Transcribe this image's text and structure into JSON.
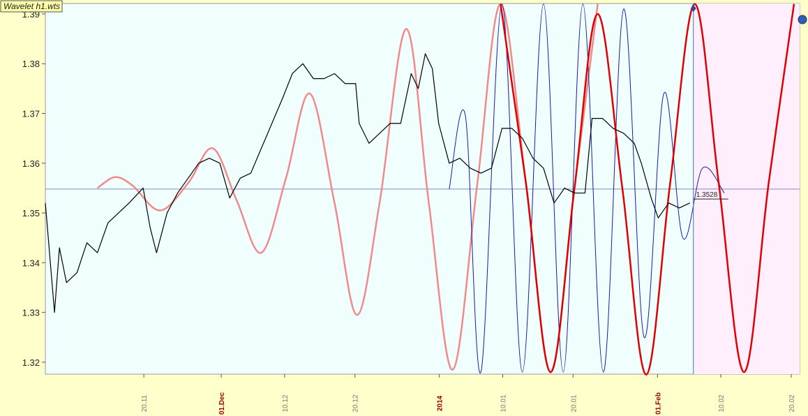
{
  "chart_data": {
    "type": "line",
    "title": "Wavelet h1.wts",
    "xlim": [
      310,
      417.2
    ],
    "ylim": [
      1.3176,
      1.3921
    ],
    "yticks": [
      1.32,
      1.33,
      1.34,
      1.35,
      1.36,
      1.37,
      1.38,
      1.39
    ],
    "xticks": [
      {
        "value": 324,
        "label": "20.11",
        "color": "#777777"
      },
      {
        "value": 335,
        "label": "01.Dec",
        "color": "#990000"
      },
      {
        "value": 344,
        "label": "10.12",
        "color": "#777777"
      },
      {
        "value": 354,
        "label": "20.12",
        "color": "#777777"
      },
      {
        "value": 366,
        "label": "2014",
        "color": "#990000"
      },
      {
        "value": 375,
        "label": "10.01",
        "color": "#777777"
      },
      {
        "value": 385,
        "label": "20.01",
        "color": "#777777"
      },
      {
        "value": 397,
        "label": "01.Feb",
        "color": "#990000"
      },
      {
        "value": 406,
        "label": "10.02",
        "color": "#777777"
      },
      {
        "value": 416,
        "label": "20.02",
        "color": "#777777"
      }
    ],
    "hline": 1.3548,
    "vline": 402.1,
    "last_price": 1.3528,
    "series": [
      {
        "color": "#f08a8a",
        "width": 2.5,
        "smooth": true,
        "x": [
          317.4,
          319.9,
          322.4,
          326.3,
          330.3,
          333.8,
          337.2,
          340.7,
          344.2,
          347.6,
          351.1,
          354.3,
          357.5,
          361.3,
          364.5,
          367.9,
          371.4,
          374.7,
          378.3,
          381.8,
          385.2,
          388.5
        ],
        "values": [
          1.355,
          1.3572,
          1.3555,
          1.3505,
          1.356,
          1.363,
          1.3525,
          1.342,
          1.357,
          1.374,
          1.352,
          1.3295,
          1.352,
          1.387,
          1.352,
          1.3185,
          1.356,
          1.392,
          1.356,
          1.318,
          1.355,
          1.392
        ]
      },
      {
        "color": "#1a1aa8",
        "width": 1,
        "smooth": true,
        "x": [
          367.4,
          369.7,
          371.9,
          374.9,
          377.8,
          380.8,
          383.6,
          386.4,
          389.3,
          392.2,
          395.1,
          397.9,
          400.6,
          403.4,
          406.5
        ],
        "values": [
          1.3548,
          1.3695,
          1.318,
          1.392,
          1.318,
          1.392,
          1.318,
          1.392,
          1.318,
          1.391,
          1.325,
          1.374,
          1.345,
          1.359,
          1.354
        ]
      },
      {
        "color": "#e00000",
        "width": 2.5,
        "smooth": true,
        "x": [
          374.7,
          378.3,
          381.8,
          385.2,
          388.5,
          392.0,
          395.4,
          398.8,
          402.3,
          405.7,
          409.3,
          412.8,
          416.4
        ],
        "values": [
          1.392,
          1.356,
          1.318,
          1.355,
          1.39,
          1.355,
          1.3175,
          1.356,
          1.392,
          1.356,
          1.318,
          1.356,
          1.392
        ]
      },
      {
        "color": "#000000",
        "width": 1.2,
        "smooth": false,
        "x": [
          310.0,
          311.3,
          312.0,
          313.0,
          314.5,
          315.9,
          317.4,
          318.9,
          320.4,
          321.9,
          323.9,
          324.9,
          325.8,
          327.3,
          328.8,
          330.3,
          331.8,
          333.3,
          334.8,
          336.2,
          337.7,
          339.2,
          340.7,
          342.2,
          343.7,
          345.1,
          346.6,
          348.1,
          349.6,
          351.1,
          352.6,
          354.1,
          354.6,
          356.0,
          357.5,
          359.0,
          360.5,
          362.0,
          363.0,
          364.0,
          365.0,
          365.9,
          367.4,
          368.9,
          370.4,
          371.9,
          373.4,
          374.9,
          376.3,
          377.8,
          379.3,
          380.8,
          382.3,
          383.8,
          385.2,
          386.7,
          387.7,
          389.2,
          390.7,
          392.2,
          393.7,
          394.7,
          396.1,
          397.1,
          398.6,
          400.1,
          401.6
        ],
        "values": [
          1.352,
          1.33,
          1.343,
          1.336,
          1.338,
          1.344,
          1.342,
          1.348,
          1.35,
          1.352,
          1.355,
          1.347,
          1.342,
          1.35,
          1.354,
          1.357,
          1.36,
          1.361,
          1.36,
          1.353,
          1.357,
          1.358,
          1.363,
          1.368,
          1.373,
          1.378,
          1.38,
          1.377,
          1.377,
          1.378,
          1.376,
          1.376,
          1.368,
          1.364,
          1.366,
          1.368,
          1.368,
          1.378,
          1.375,
          1.382,
          1.379,
          1.368,
          1.36,
          1.361,
          1.359,
          1.358,
          1.359,
          1.367,
          1.367,
          1.365,
          1.361,
          1.359,
          1.352,
          1.355,
          1.354,
          1.354,
          1.369,
          1.369,
          1.367,
          1.366,
          1.364,
          1.36,
          1.353,
          1.349,
          1.352,
          1.351,
          1.352
        ]
      }
    ]
  }
}
